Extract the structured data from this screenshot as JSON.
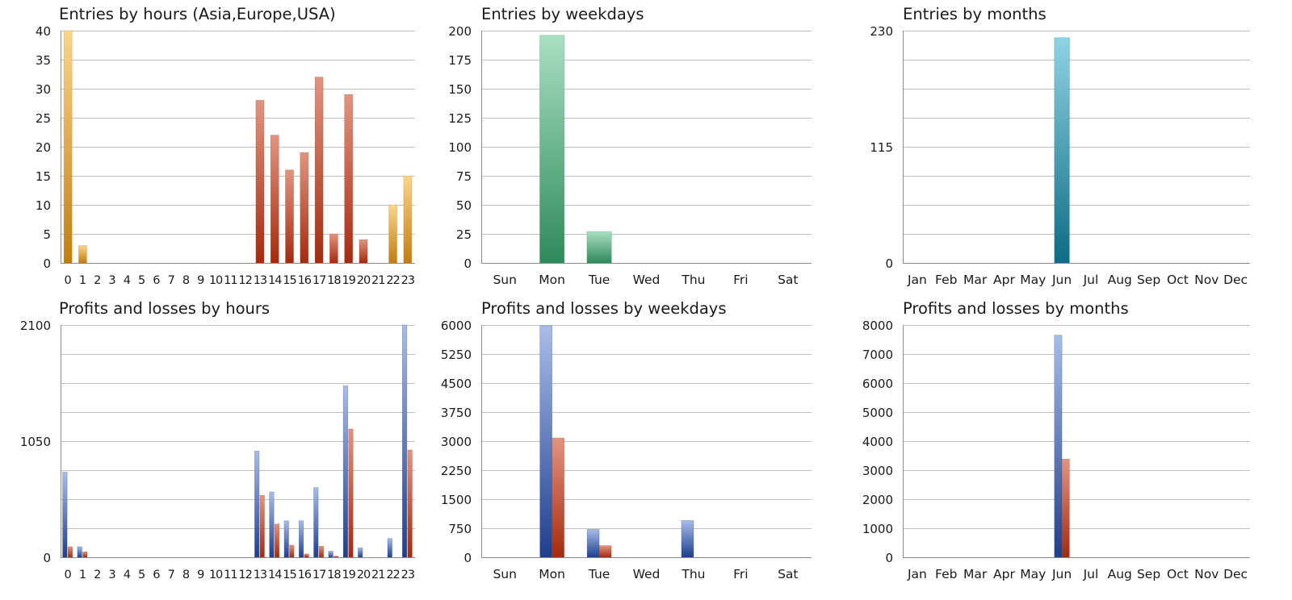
{
  "colors": {
    "orange_top": "#fbd58a",
    "orange_bottom": "#c27d10",
    "red_top": "#e29480",
    "red_bottom": "#a52a0e",
    "green_top": "#a9dfc2",
    "green_bottom": "#2e8a5a",
    "teal_top": "#8fd3e3",
    "teal_bottom": "#0d6b86",
    "blue_top": "#a8bce8",
    "blue_bottom": "#1e3f8e",
    "grid": "#bfbfbf",
    "axis": "#8c8c8c"
  },
  "chart_data": [
    {
      "id": "entries-hours",
      "type": "bar",
      "title": "Entries by hours (Asia,Europe,USA)",
      "categories": [
        "0",
        "1",
        "2",
        "3",
        "4",
        "5",
        "6",
        "7",
        "8",
        "9",
        "10",
        "11",
        "12",
        "13",
        "14",
        "15",
        "16",
        "17",
        "18",
        "19",
        "20",
        "21",
        "22",
        "23"
      ],
      "values": [
        40,
        3,
        0,
        0,
        0,
        0,
        0,
        0,
        0,
        0,
        0,
        0,
        0,
        28,
        22,
        16,
        19,
        32,
        5,
        29,
        4,
        0,
        10,
        15
      ],
      "bar_colors": [
        "orange",
        "orange",
        "orange",
        "orange",
        "orange",
        "orange",
        "orange",
        "orange",
        "orange",
        "orange",
        "orange",
        "orange",
        "orange",
        "red",
        "red",
        "red",
        "red",
        "red",
        "red",
        "red",
        "red",
        "orange",
        "orange",
        "orange"
      ],
      "ylim": [
        0,
        40
      ],
      "yticks": [
        0,
        5,
        10,
        15,
        20,
        25,
        30,
        35,
        40
      ],
      "grid": true
    },
    {
      "id": "entries-weekdays",
      "type": "bar",
      "title": "Entries by weekdays",
      "categories": [
        "Sun",
        "Mon",
        "Tue",
        "Wed",
        "Thu",
        "Fri",
        "Sat"
      ],
      "values": [
        0,
        196,
        27,
        0,
        0,
        0,
        0
      ],
      "bar_color": "green",
      "ylim": [
        0,
        200
      ],
      "yticks": [
        0,
        25,
        50,
        75,
        100,
        125,
        150,
        175,
        200
      ],
      "grid": true
    },
    {
      "id": "entries-months",
      "type": "bar",
      "title": "Entries by months",
      "categories": [
        "Jan",
        "Feb",
        "Mar",
        "Apr",
        "May",
        "Jun",
        "Jul",
        "Aug",
        "Sep",
        "Oct",
        "Nov",
        "Dec"
      ],
      "values": [
        0,
        0,
        0,
        0,
        0,
        223,
        0,
        0,
        0,
        0,
        0,
        0
      ],
      "bar_color": "teal",
      "ylim": [
        0,
        230
      ],
      "yticks": [
        0,
        115,
        230
      ],
      "minor_ticks": 8,
      "grid": true
    },
    {
      "id": "pl-hours",
      "type": "bar",
      "title": "Profits and losses by hours",
      "categories": [
        "0",
        "1",
        "2",
        "3",
        "4",
        "5",
        "6",
        "7",
        "8",
        "9",
        "10",
        "11",
        "12",
        "13",
        "14",
        "15",
        "16",
        "17",
        "18",
        "19",
        "20",
        "21",
        "22",
        "23"
      ],
      "series": [
        {
          "color": "blue",
          "values": [
            770,
            95,
            0,
            0,
            0,
            0,
            0,
            0,
            0,
            0,
            0,
            0,
            0,
            960,
            590,
            330,
            330,
            630,
            55,
            1550,
            85,
            0,
            170,
            2100
          ]
        },
        {
          "color": "red",
          "values": [
            95,
            50,
            0,
            0,
            0,
            0,
            0,
            0,
            0,
            0,
            0,
            0,
            0,
            560,
            300,
            110,
            30,
            100,
            10,
            1160,
            0,
            0,
            0,
            970
          ]
        }
      ],
      "ylim": [
        0,
        2100
      ],
      "yticks": [
        0,
        1050,
        2100
      ],
      "minor_ticks": 8,
      "grid": true
    },
    {
      "id": "pl-weekdays",
      "type": "bar",
      "title": "Profits and losses by weekdays",
      "categories": [
        "Sun",
        "Mon",
        "Tue",
        "Wed",
        "Thu",
        "Fri",
        "Sat"
      ],
      "series": [
        {
          "color": "blue",
          "values": [
            0,
            5980,
            720,
            0,
            950,
            0,
            0
          ]
        },
        {
          "color": "red",
          "values": [
            0,
            3080,
            300,
            0,
            0,
            0,
            0
          ]
        }
      ],
      "ylim": [
        0,
        6000
      ],
      "yticks": [
        0,
        750,
        1500,
        2250,
        3000,
        3750,
        4500,
        5250,
        6000
      ],
      "grid": true
    },
    {
      "id": "pl-months",
      "type": "bar",
      "title": "Profits and losses by months",
      "categories": [
        "Jan",
        "Feb",
        "Mar",
        "Apr",
        "May",
        "Jun",
        "Jul",
        "Aug",
        "Sep",
        "Oct",
        "Nov",
        "Dec"
      ],
      "series": [
        {
          "color": "blue",
          "values": [
            0,
            0,
            0,
            0,
            0,
            7650,
            0,
            0,
            0,
            0,
            0,
            0
          ]
        },
        {
          "color": "red",
          "values": [
            0,
            0,
            0,
            0,
            0,
            3380,
            0,
            0,
            0,
            0,
            0,
            0
          ]
        }
      ],
      "ylim": [
        0,
        8000
      ],
      "yticks": [
        0,
        1000,
        2000,
        3000,
        4000,
        5000,
        6000,
        7000,
        8000
      ],
      "grid": true
    }
  ]
}
